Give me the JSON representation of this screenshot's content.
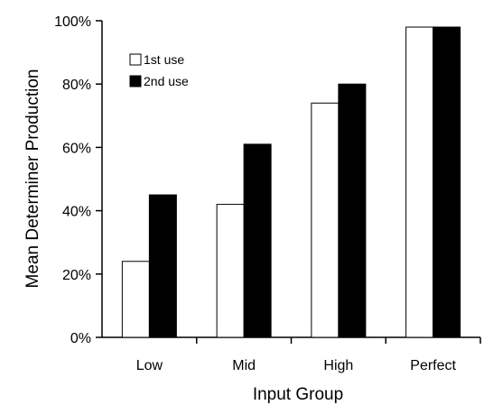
{
  "chart_data": {
    "type": "bar",
    "categories": [
      "Low",
      "Mid",
      "High",
      "Perfect"
    ],
    "series": [
      {
        "name": "1st use",
        "values": [
          24,
          42,
          74,
          98
        ],
        "color": "#ffffff"
      },
      {
        "name": "2nd use",
        "values": [
          45,
          61,
          80,
          98
        ],
        "color": "#000000"
      }
    ],
    "xlabel": "Input Group",
    "ylabel": "Mean Determiner Production",
    "ylim": [
      0,
      100
    ],
    "yticks": [
      0,
      20,
      40,
      60,
      80,
      100
    ],
    "ytick_labels": [
      "0%",
      "20%",
      "40%",
      "60%",
      "80%",
      "100%"
    ],
    "legend_position": "top-left",
    "grid": false
  }
}
